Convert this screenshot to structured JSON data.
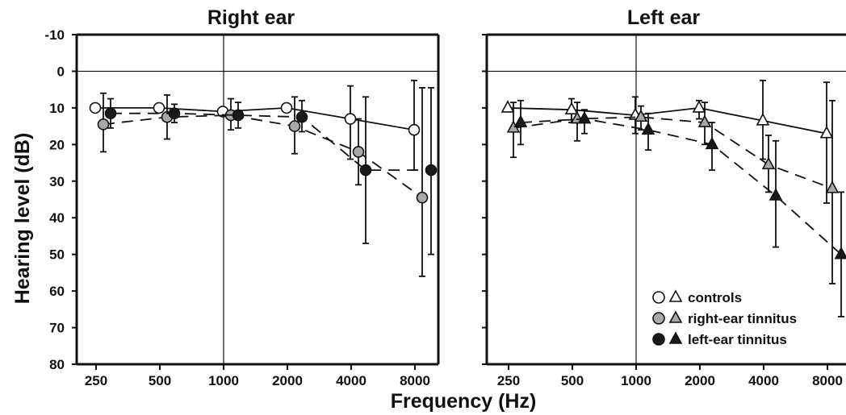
{
  "chart_data": {
    "type": "line",
    "xlabel": "Frequency (Hz)",
    "ylabel": "Hearing level (dB)",
    "x_ticks": [
      "250",
      "500",
      "1000",
      "2000",
      "4000",
      "8000"
    ],
    "y_ticks": [
      "-10",
      "0",
      "10",
      "20",
      "30",
      "40",
      "50",
      "60",
      "70",
      "80"
    ],
    "ylim": [
      -10,
      80
    ],
    "y_inverted": true,
    "x_scale": "log",
    "grid": false,
    "legend": {
      "placement": "bottom-right of Left ear panel",
      "entries": [
        "controls",
        "right-ear tinnitus",
        "left-ear tinnitus"
      ]
    },
    "colors": {
      "controls": "#ffffff",
      "right-ear tinnitus": "#a8a8a8",
      "left-ear tinnitus": "#1a1a1a"
    },
    "panels": [
      {
        "title": "Right ear",
        "marker": "circle",
        "series": [
          {
            "name": "controls",
            "line": "solid",
            "x": [
              250,
              500,
              1000,
              2000,
              4000,
              8000
            ],
            "y": [
              10,
              10,
              11,
              10,
              13,
              16
            ],
            "err_low": [
              null,
              null,
              null,
              null,
              4,
              2.5
            ],
            "err_high": [
              null,
              null,
              null,
              null,
              24,
              27
            ]
          },
          {
            "name": "right-ear tinnitus",
            "line": "dashed",
            "x": [
              250,
              500,
              1000,
              2000,
              4000,
              8000
            ],
            "y": [
              14.5,
              12.5,
              12,
              15,
              22,
              34.5
            ],
            "err_low": [
              6,
              6.5,
              7.5,
              7,
              13,
              4.5
            ],
            "err_high": [
              22,
              18.5,
              16,
              22.5,
              31,
              56
            ]
          },
          {
            "name": "left-ear tinnitus",
            "line": "dashed",
            "x": [
              250,
              500,
              1000,
              2000,
              4000,
              8000
            ],
            "y": [
              11.5,
              11.5,
              12,
              12.5,
              27,
              27
            ],
            "err_low": [
              7.5,
              9,
              8.5,
              8,
              7,
              4.5
            ],
            "err_high": [
              15.5,
              14,
              15.5,
              16.5,
              47,
              50
            ]
          }
        ]
      },
      {
        "title": "Left ear",
        "marker": "triangle",
        "series": [
          {
            "name": "controls",
            "line": "solid",
            "x": [
              250,
              500,
              1000,
              2000,
              4000,
              8000
            ],
            "y": [
              10,
              10.5,
              12,
              10,
              13.5,
              17
            ],
            "err_low": [
              null,
              7.5,
              7,
              8,
              2.5,
              3
            ],
            "err_high": [
              null,
              14,
              17,
              13,
              24,
              36
            ]
          },
          {
            "name": "right-ear tinnitus",
            "line": "dashed",
            "x": [
              250,
              500,
              1000,
              2000,
              4000,
              8000
            ],
            "y": [
              15.5,
              13,
              12.5,
              14,
              25.5,
              32
            ],
            "err_low": [
              8.5,
              8.5,
              9.5,
              8.5,
              17.5,
              8
            ],
            "err_high": [
              23.5,
              19,
              16,
              20,
              33,
              58
            ]
          },
          {
            "name": "left-ear tinnitus",
            "line": "dashed",
            "x": [
              250,
              500,
              1000,
              2000,
              4000,
              8000
            ],
            "y": [
              14,
              13,
              16,
              20,
              34,
              50
            ],
            "err_low": [
              8,
              10.5,
              11.5,
              14,
              19,
              33
            ],
            "err_high": [
              20,
              17,
              21.5,
              27,
              48,
              67
            ]
          }
        ]
      }
    ]
  }
}
